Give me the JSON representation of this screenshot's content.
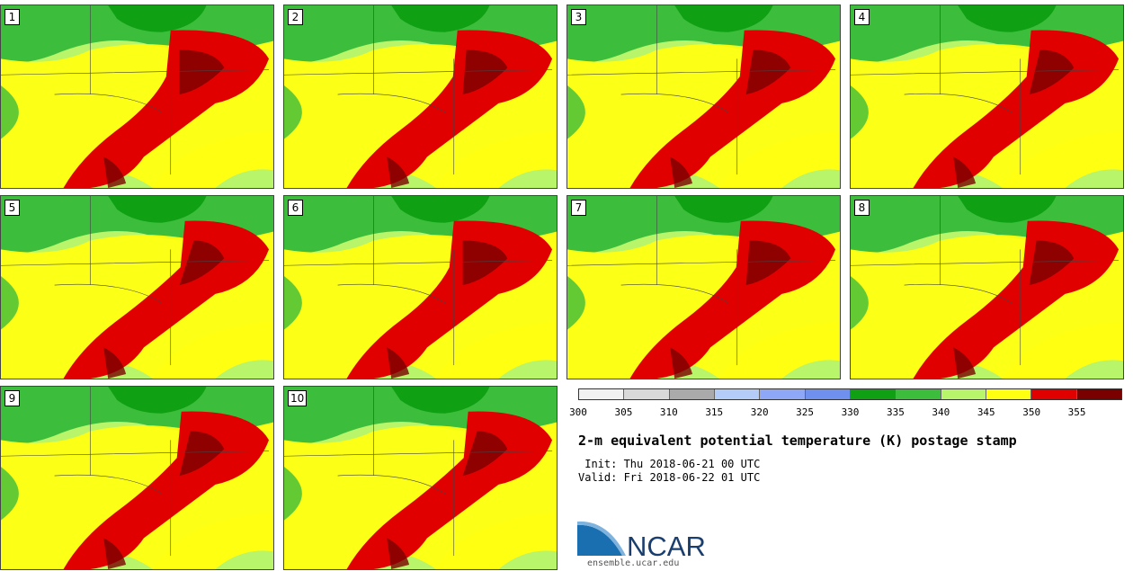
{
  "panels": [
    {
      "label": "1"
    },
    {
      "label": "2"
    },
    {
      "label": "3"
    },
    {
      "label": "4"
    },
    {
      "label": "5"
    },
    {
      "label": "6"
    },
    {
      "label": "7"
    },
    {
      "label": "8"
    },
    {
      "label": "9"
    },
    {
      "label": "10"
    }
  ],
  "colorbar": {
    "colors": [
      "#f2f2f2",
      "#d9d9d9",
      "#aaaaaa",
      "#b4ccf8",
      "#8ea8f7",
      "#7090f0",
      "#0fa014",
      "#3dbd3c",
      "#b8f56a",
      "#ffff12",
      "#e00000",
      "#7a0000"
    ],
    "tick_labels": [
      "300",
      "305",
      "310",
      "315",
      "320",
      "325",
      "330",
      "335",
      "340",
      "345",
      "350",
      "355"
    ]
  },
  "title": "2-m equivalent potential temperature (K) postage stamp",
  "init_text": " Init: Thu 2018-06-21 00 UTC",
  "valid_text": "Valid: Fri 2018-06-22 01 UTC",
  "logo": {
    "text": "NCAR",
    "url": "ensemble.ucar.edu"
  }
}
